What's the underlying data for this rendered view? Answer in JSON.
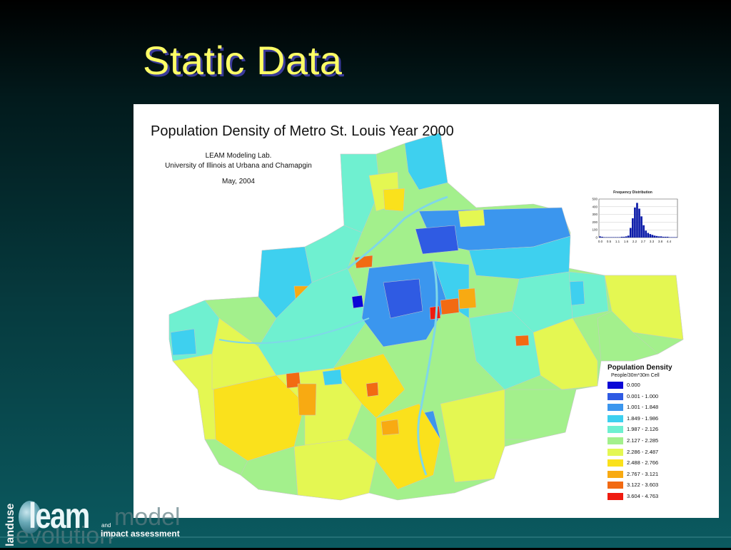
{
  "slide": {
    "title": "Static Data"
  },
  "map": {
    "title": "Population Density of Metro St. Louis Year 2000",
    "credit_line1": "LEAM Modeling Lab.",
    "credit_line2": "University of Illinois at Urbana and Chamapgin",
    "date": "May, 2004"
  },
  "histogram": {
    "title": "Frequency Distribution",
    "y_ticks": [
      "500",
      "400",
      "300",
      "200",
      "100",
      "0"
    ],
    "x_ticks": [
      "0.0",
      "0.5",
      "1.1",
      "1.6",
      "2.2",
      "2.7",
      "3.3",
      "3.8",
      "4.4"
    ],
    "bars": [
      0.03,
      0.02,
      0.01,
      0.01,
      0.01,
      0.01,
      0.01,
      0.01,
      0.01,
      0.01,
      0.02,
      0.02,
      0.03,
      0.05,
      0.25,
      0.5,
      0.78,
      0.9,
      0.75,
      0.55,
      0.32,
      0.18,
      0.12,
      0.09,
      0.07,
      0.05,
      0.04,
      0.03,
      0.03,
      0.02,
      0.02,
      0.02,
      0.01,
      0.01,
      0.01,
      0.01
    ],
    "bar_color": "#0a1aa8"
  },
  "legend": {
    "title": "Population Density",
    "subtitle": "People/30m*30m Cell",
    "items": [
      {
        "label": "0.000",
        "color": "#0b07d6"
      },
      {
        "label": "0.001 - 1.000",
        "color": "#2f5be3"
      },
      {
        "label": "1.001 - 1.848",
        "color": "#3b96ee"
      },
      {
        "label": "1.849 - 1.986",
        "color": "#3ed0ef"
      },
      {
        "label": "1.987 - 2.126",
        "color": "#6ff0d0"
      },
      {
        "label": "2.127 - 2.285",
        "color": "#a3f08c"
      },
      {
        "label": "2.286 - 2.487",
        "color": "#e4f752"
      },
      {
        "label": "2.488 - 2.766",
        "color": "#fae11c"
      },
      {
        "label": "2.767 - 3.121",
        "color": "#f8aa12"
      },
      {
        "label": "3.122 - 3.603",
        "color": "#f26a12"
      },
      {
        "label": "3.604 - 4.763",
        "color": "#ef1b10"
      }
    ]
  },
  "logo": {
    "landuse": "landuse",
    "leam": "leam",
    "model": "model",
    "evolution": "evolution",
    "and": "and",
    "impact": "impact assessment"
  }
}
